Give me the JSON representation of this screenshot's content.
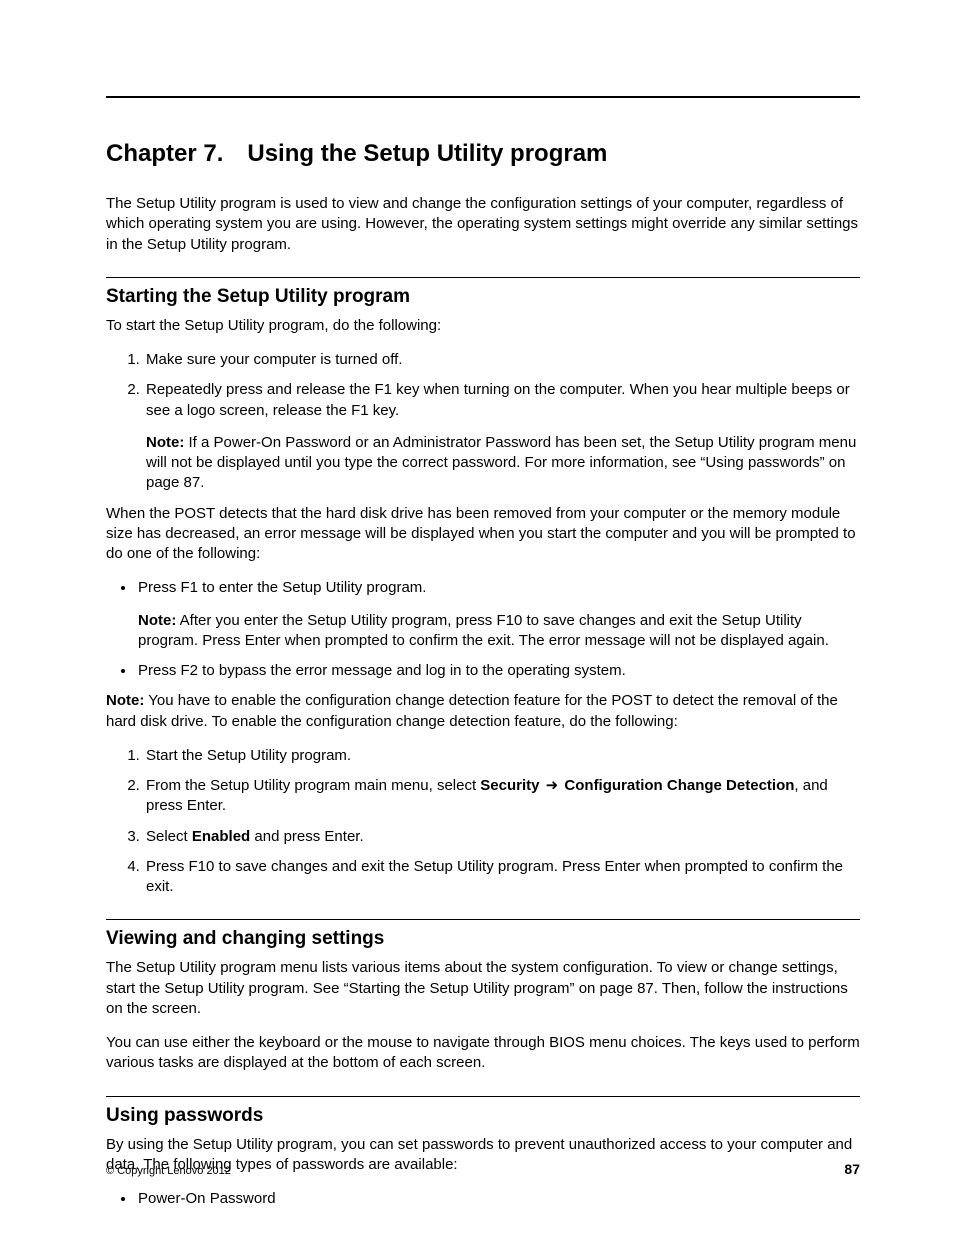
{
  "chapter_title": "Chapter 7. Using the Setup Utility program",
  "intro": "The Setup Utility program is used to view and change the configuration settings of your computer, regardless of which operating system you are using. However, the operating system settings might override any similar settings in the Setup Utility program.",
  "sec1": {
    "heading": "Starting the Setup Utility program",
    "lead": "To start the Setup Utility program, do the following:",
    "ol1_1": "Make sure your computer is turned off.",
    "ol1_2": "Repeatedly press and release the F1 key when turning on the computer. When you hear multiple beeps or see a logo screen, release the F1 key.",
    "note1_label": "Note:",
    "note1_text": " If a Power-On Password or an Administrator Password has been set, the Setup Utility program menu will not be displayed until you type the correct password. For more information, see “Using passwords” on page 87.",
    "para2": "When the POST detects that the hard disk drive has been removed from your computer or the memory module size has decreased, an error message will be displayed when you start the computer and you will be prompted to do one of the following:",
    "ul1_1": "Press F1 to enter the Setup Utility program.",
    "note2_label": "Note:",
    "note2_text": " After you enter the Setup Utility program, press F10 to save changes and exit the Setup Utility program. Press Enter when prompted to confirm the exit. The error message will not be displayed again.",
    "ul1_2": "Press F2 to bypass the error message and log in to the operating system.",
    "note3_label": "Note:",
    "note3_text": " You have to enable the configuration change detection feature for the POST to detect the removal of the hard disk drive. To enable the configuration change detection feature, do the following:",
    "ol2_1": "Start the Setup Utility program.",
    "ol2_2_pre": "From the Setup Utility program main menu, select ",
    "ol2_2_b1": "Security",
    "arrow": " ➜ ",
    "ol2_2_b2": "Configuration Change Detection",
    "ol2_2_post": ", and press Enter.",
    "ol2_3_pre": "Select ",
    "ol2_3_b": "Enabled",
    "ol2_3_post": " and press Enter.",
    "ol2_4": "Press F10 to save changes and exit the Setup Utility program. Press Enter when prompted to confirm the exit."
  },
  "sec2": {
    "heading": "Viewing and changing settings",
    "p1": "The Setup Utility program menu lists various items about the system configuration. To view or change settings, start the Setup Utility program. See “Starting the Setup Utility program” on page 87. Then, follow the instructions on the screen.",
    "p2": "You can use either the keyboard or the mouse to navigate through BIOS menu choices. The keys used to perform various tasks are displayed at the bottom of each screen."
  },
  "sec3": {
    "heading": "Using passwords",
    "p1": "By using the Setup Utility program, you can set passwords to prevent unauthorized access to your computer and data. The following types of passwords are available:",
    "ul_1": "Power-On Password"
  },
  "footer": {
    "copyright": "© Copyright Lenovo 2012",
    "pagenum": "87"
  }
}
